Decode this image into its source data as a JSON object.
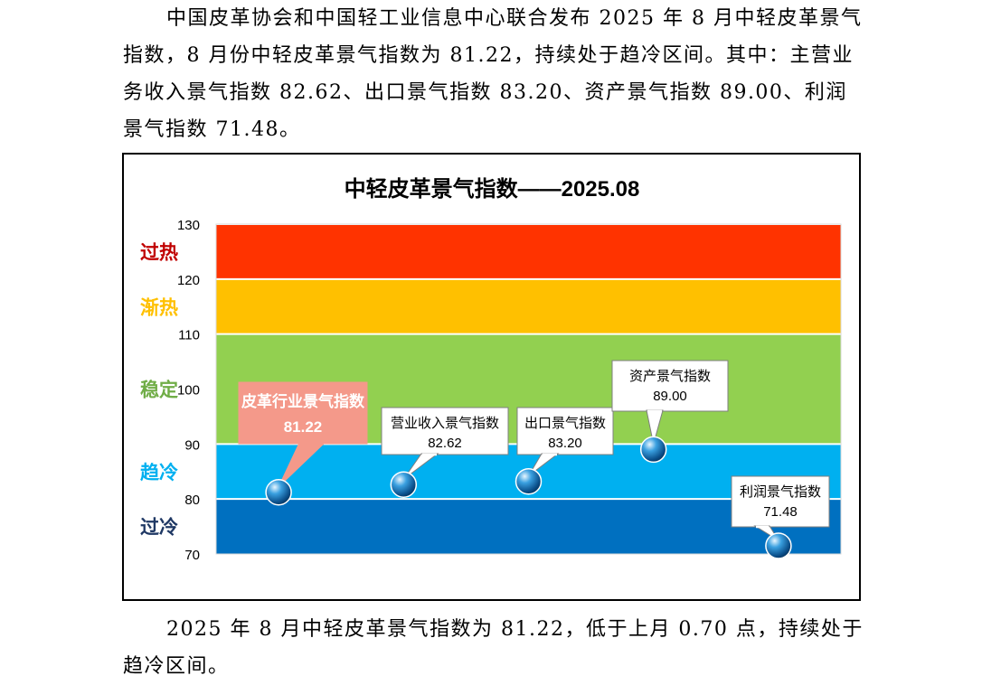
{
  "intro_text": "中国皮革协会和中国轻工业信息中心联合发布 2025 年 8 月中轻皮革景气指数，8 月份中轻皮革景气指数为 81.22，持续处于趋冷区间。其中：主营业务收入景气指数 82.62、出口景气指数 83.20、资产景气指数 89.00、利润景气指数 71.48。",
  "outro_text": "2025 年 8 月中轻皮革景气指数为 81.22，低于上月 0.70 点，持续处于趋冷区间。",
  "chart_data": {
    "type": "scatter",
    "title": "中轻皮革景气指数——2025.08",
    "ylim": [
      70,
      130
    ],
    "yticks": [
      70,
      80,
      90,
      100,
      110,
      120,
      130
    ],
    "zones": [
      {
        "label": "过热",
        "from": 120,
        "to": 130,
        "color": "#FF3300",
        "label_color": "#C00000"
      },
      {
        "label": "渐热",
        "from": 110,
        "to": 120,
        "color": "#FFC000",
        "label_color": "#FFC000"
      },
      {
        "label": "稳定",
        "from": 90,
        "to": 110,
        "color": "#92D050",
        "label_color": "#70AD47"
      },
      {
        "label": "趋冷",
        "from": 80,
        "to": 90,
        "color": "#00B0F0",
        "label_color": "#00B0F0"
      },
      {
        "label": "过冷",
        "from": 70,
        "to": 80,
        "color": "#0070C0",
        "label_color": "#1F3864"
      }
    ],
    "points": [
      {
        "name": "皮革行业景气指数",
        "value": 81.22,
        "value_label": "81.22",
        "highlight": true
      },
      {
        "name": "营业收入景气指数",
        "value": 82.62,
        "value_label": "82.62",
        "highlight": false
      },
      {
        "name": "出口景气指数",
        "value": 83.2,
        "value_label": "83.20",
        "highlight": false
      },
      {
        "name": "资产景气指数",
        "value": 89.0,
        "value_label": "89.00",
        "highlight": false
      },
      {
        "name": "利润景气指数",
        "value": 71.48,
        "value_label": "71.48",
        "highlight": false
      }
    ],
    "colors": {
      "highlight_callout": "#F4998A",
      "callout_border": "#7F7F7F",
      "marker_fill": "#0070C0"
    }
  }
}
